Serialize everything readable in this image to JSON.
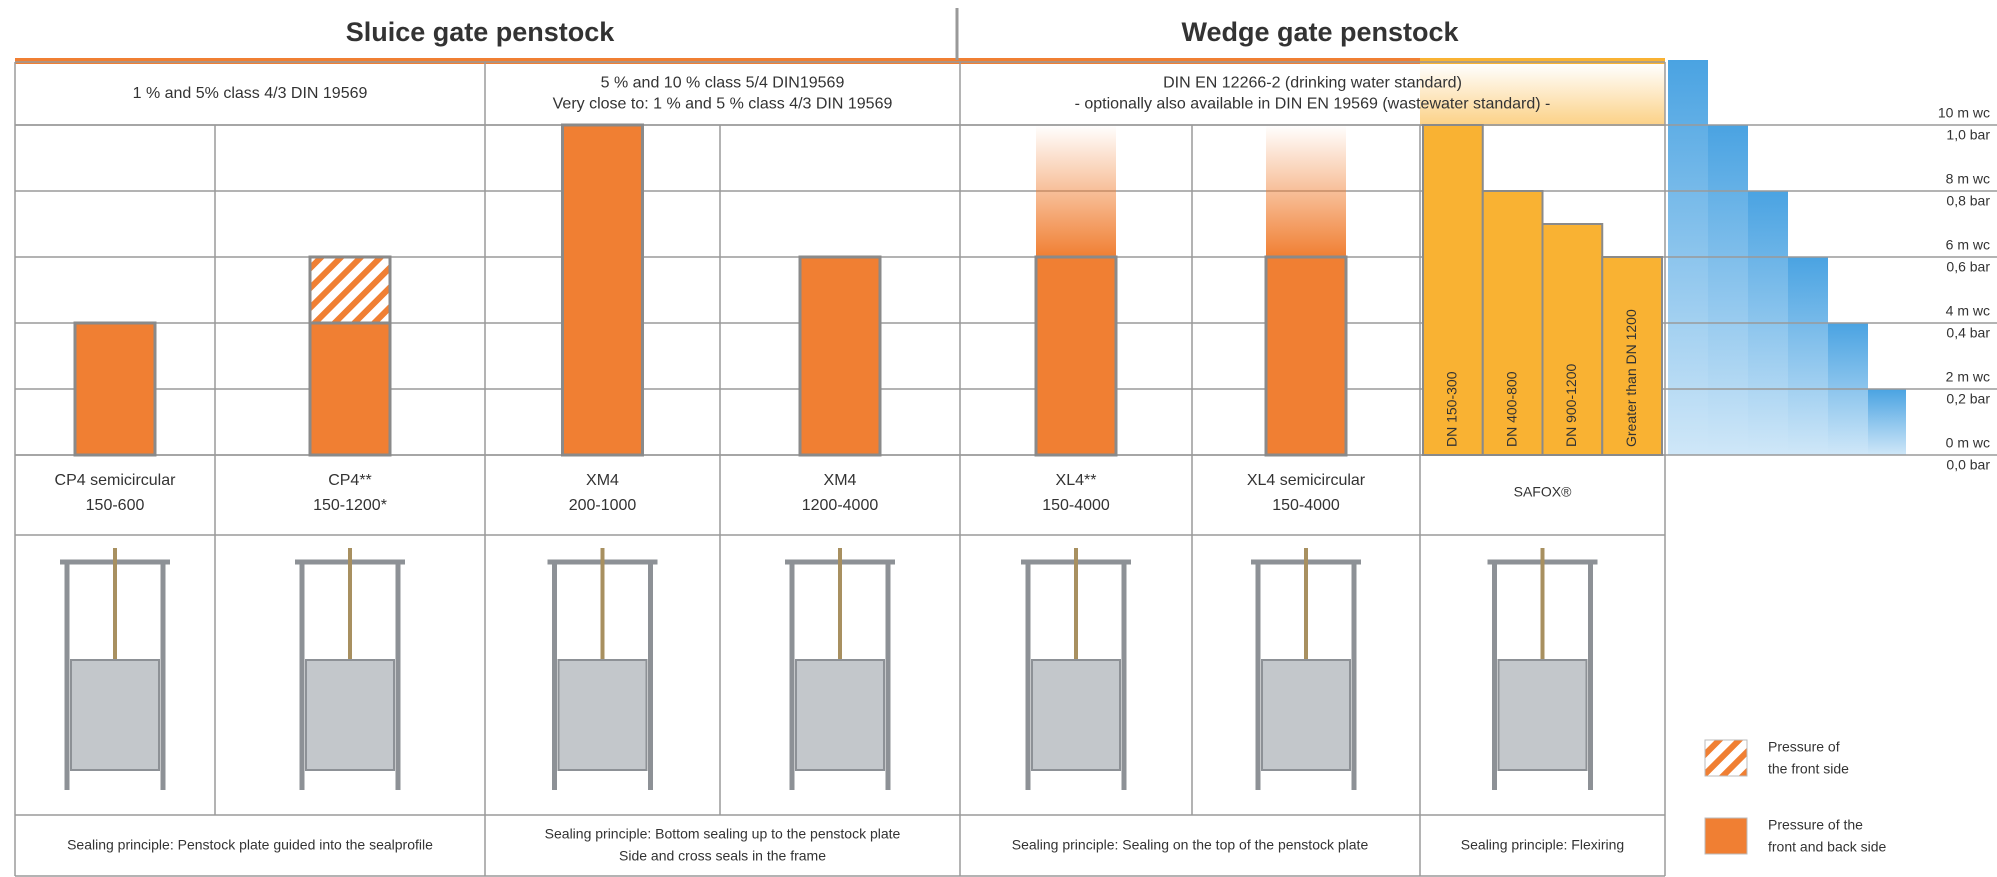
{
  "chart_data": {
    "type": "bar",
    "titles": [
      "Sluice gate penstock",
      "Wedge gate penstock"
    ],
    "standards": [
      [
        "1 % and 5% class 4/3 DIN 19569"
      ],
      [
        "5 % and 10 % class 5/4 DIN19569",
        "Very close to: 1 % and 5 % class 4/3 DIN 19569"
      ],
      [
        "DIN EN 12266-2 (drinking water standard)",
        "- optionally also available in DIN EN 19569 (wastewater standard) -"
      ]
    ],
    "columns": [
      {
        "name": "CP4 semicircular",
        "range": "150-600",
        "value": 4
      },
      {
        "name": "CP4**",
        "range": "150-1200*",
        "value": 4,
        "front_value": 6
      },
      {
        "name": "XM4",
        "range": "200-1000",
        "value": 10
      },
      {
        "name": "XM4",
        "range": "1200-4000",
        "value": 6
      },
      {
        "name": "XL4**",
        "range": "150-4000",
        "value": 6,
        "extended_value": 10
      },
      {
        "name": "XL4 semicircular",
        "range": "150-4000",
        "value": 6,
        "extended_value": 10
      },
      {
        "name": "SAFOX®",
        "subbars": [
          {
            "label": "DN 150-300",
            "value": 10
          },
          {
            "label": "DN 400-800",
            "value": 8
          },
          {
            "label": "DN 900-1200",
            "value": 7
          },
          {
            "label": "Greater than DN 1200",
            "value": 6
          }
        ]
      }
    ],
    "sealing": [
      [
        "Sealing principle: Penstock plate guided into the sealprofile"
      ],
      [
        "Sealing principle: Bottom sealing up to the penstock plate",
        "Side and cross seals in the frame"
      ],
      [
        "Sealing principle: Sealing on the top of the penstock plate"
      ],
      [
        "Sealing principle: Flexiring"
      ]
    ],
    "ylim": [
      0,
      10
    ],
    "yticks": [
      {
        "value": 0,
        "label": "0 m wc"
      },
      {
        "value": 2,
        "label": "2 m wc"
      },
      {
        "value": 4,
        "label": "4 m wc"
      },
      {
        "value": 6,
        "label": "6 m wc"
      },
      {
        "value": 8,
        "label": "8 m wc"
      },
      {
        "value": 10,
        "label": "10 m wc"
      }
    ],
    "y2lim": [
      0,
      1
    ],
    "y2ticks": [
      {
        "value": 0,
        "label": "0,0 bar"
      },
      {
        "value": 0.2,
        "label": "0,2 bar"
      },
      {
        "value": 0.4,
        "label": "0,4 bar"
      },
      {
        "value": 0.6,
        "label": "0,6 bar"
      },
      {
        "value": 0.8,
        "label": "0,8 bar"
      },
      {
        "value": 1,
        "label": "1,0 bar"
      }
    ],
    "legend": [
      {
        "label": [
          "Pressure of",
          "the front side"
        ],
        "pattern": "hatch"
      },
      {
        "label": [
          "Pressure of the",
          "front and back side"
        ],
        "color": "#f07f33"
      }
    ],
    "color": "#f07f33",
    "subbar_color": "#f9b233",
    "grid": true
  }
}
